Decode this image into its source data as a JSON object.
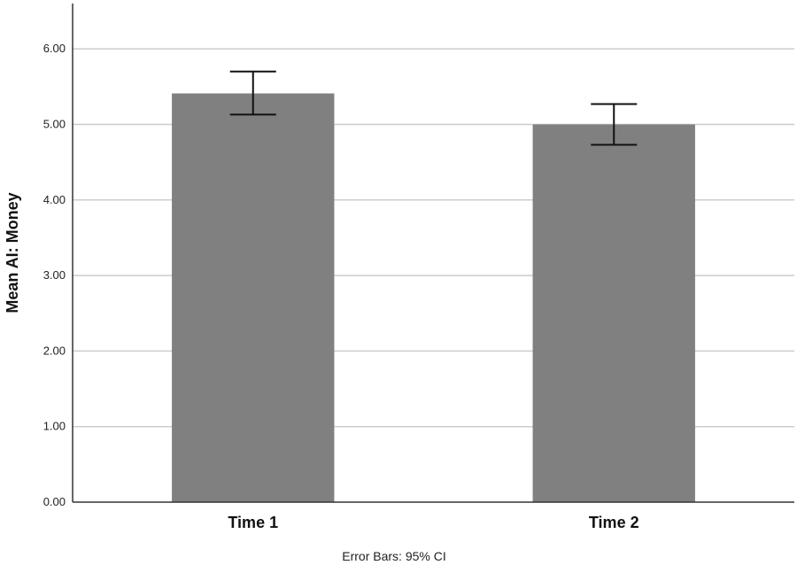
{
  "chart_data": {
    "type": "bar",
    "categories": [
      "Time 1",
      "Time 2"
    ],
    "values": [
      5.41,
      5.0
    ],
    "error_bars": [
      {
        "low": 5.13,
        "high": 5.7
      },
      {
        "low": 4.73,
        "high": 5.27
      }
    ],
    "ylabel": "Mean AI: Money",
    "xlabel": "",
    "ylim": [
      0,
      6.6
    ],
    "yticks": [
      "0.00",
      "1.00",
      "2.00",
      "3.00",
      "4.00",
      "5.00",
      "6.00"
    ],
    "ytick_values": [
      0,
      1,
      2,
      3,
      4,
      5,
      6
    ],
    "footnote": "Error Bars: 95% CI",
    "grid": true,
    "bar_color": "#808080",
    "grid_color": "#cccccc"
  }
}
